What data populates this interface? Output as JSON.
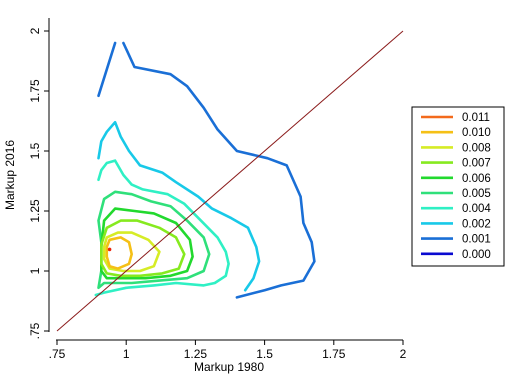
{
  "chart_data": {
    "type": "contour",
    "xlabel": "Markup 1980",
    "ylabel": "Markup 2016",
    "xlim": [
      0.75,
      2
    ],
    "ylim": [
      0.75,
      2
    ],
    "x_ticks": [
      ".75",
      "1",
      "1.25",
      "1.5",
      "1.75",
      "2"
    ],
    "y_ticks": [
      ".75",
      "1",
      "1.25",
      "1.5",
      "1.75",
      "2"
    ],
    "grid": false,
    "legend_position": "right",
    "reference_line": {
      "from": [
        0.75,
        0.75
      ],
      "to": [
        2,
        2
      ],
      "color": "#8b1c1c"
    },
    "peak_point": {
      "x": 0.94,
      "y": 1.09,
      "color": "#e8220a"
    },
    "levels": [
      {
        "label": "0.011",
        "color": "#f36a1c"
      },
      {
        "label": "0.010",
        "color": "#f5c016"
      },
      {
        "label": "0.008",
        "color": "#d6ec26"
      },
      {
        "label": "0.007",
        "color": "#86ea1f"
      },
      {
        "label": "0.006",
        "color": "#22d92e"
      },
      {
        "label": "0.005",
        "color": "#2fe07a"
      },
      {
        "label": "0.004",
        "color": "#2ff0c4"
      },
      {
        "label": "0.002",
        "color": "#18c9e8"
      },
      {
        "label": "0.001",
        "color": "#1a6fd6"
      },
      {
        "label": "0.000",
        "color": "#0a0ad0"
      }
    ],
    "contours": [
      {
        "level": "0.001",
        "points": [
          [
            0.9,
            1.73
          ],
          [
            0.93,
            1.84
          ],
          [
            0.96,
            1.95
          ]
        ],
        "closed": false
      },
      {
        "level": "0.001",
        "points": [
          [
            0.99,
            1.95
          ],
          [
            1.03,
            1.85
          ],
          [
            1.16,
            1.82
          ],
          [
            1.22,
            1.77
          ],
          [
            1.28,
            1.68
          ],
          [
            1.33,
            1.59
          ],
          [
            1.4,
            1.5
          ],
          [
            1.51,
            1.47
          ],
          [
            1.58,
            1.44
          ],
          [
            1.63,
            1.31
          ],
          [
            1.64,
            1.2
          ],
          [
            1.67,
            1.12
          ],
          [
            1.68,
            1.04
          ],
          [
            1.64,
            0.96
          ],
          [
            1.56,
            0.94
          ],
          [
            1.5,
            0.92
          ],
          [
            1.4,
            0.89
          ]
        ],
        "closed": false
      },
      {
        "level": "0.002",
        "points": [
          [
            0.9,
            1.47
          ],
          [
            0.91,
            1.54
          ],
          [
            0.93,
            1.58
          ],
          [
            0.96,
            1.62
          ],
          [
            0.98,
            1.56
          ],
          [
            1.01,
            1.5
          ],
          [
            1.05,
            1.44
          ],
          [
            1.13,
            1.41
          ],
          [
            1.18,
            1.37
          ],
          [
            1.26,
            1.31
          ],
          [
            1.31,
            1.26
          ],
          [
            1.38,
            1.22
          ],
          [
            1.44,
            1.18
          ],
          [
            1.47,
            1.1
          ],
          [
            1.48,
            1.04
          ],
          [
            1.46,
            0.97
          ],
          [
            1.43,
            0.92
          ]
        ],
        "closed": false
      },
      {
        "level": "0.004",
        "points": [
          [
            0.9,
            1.38
          ],
          [
            0.91,
            1.42
          ],
          [
            0.93,
            1.45
          ],
          [
            0.96,
            1.46
          ],
          [
            0.99,
            1.4
          ],
          [
            1.02,
            1.36
          ],
          [
            1.06,
            1.34
          ],
          [
            1.15,
            1.32
          ],
          [
            1.21,
            1.28
          ],
          [
            1.27,
            1.21
          ],
          [
            1.33,
            1.14
          ],
          [
            1.36,
            1.08
          ],
          [
            1.37,
            1.03
          ],
          [
            1.36,
            0.98
          ],
          [
            1.32,
            0.95
          ],
          [
            1.28,
            0.94
          ],
          [
            1.18,
            0.95
          ],
          [
            1.1,
            0.94
          ],
          [
            1.0,
            0.93
          ],
          [
            0.92,
            0.91
          ],
          [
            0.89,
            0.9
          ]
        ],
        "closed": false
      },
      {
        "level": "0.005",
        "points": [
          [
            0.9,
            1.21
          ],
          [
            0.92,
            1.3
          ],
          [
            0.96,
            1.33
          ],
          [
            1.02,
            1.32
          ],
          [
            1.09,
            1.29
          ],
          [
            1.16,
            1.27
          ],
          [
            1.22,
            1.21
          ],
          [
            1.28,
            1.14
          ],
          [
            1.3,
            1.07
          ],
          [
            1.28,
            1.0
          ],
          [
            1.22,
            0.97
          ],
          [
            1.12,
            0.96
          ],
          [
            1.02,
            0.95
          ],
          [
            0.95,
            0.95
          ],
          [
            0.92,
            0.95
          ],
          [
            0.9,
            0.93
          ],
          [
            0.91,
            1.0
          ],
          [
            0.91,
            1.12
          ],
          [
            0.9,
            1.21
          ]
        ],
        "closed": true
      },
      {
        "level": "0.006",
        "points": [
          [
            0.92,
            1.21
          ],
          [
            0.96,
            1.26
          ],
          [
            1.03,
            1.25
          ],
          [
            1.1,
            1.24
          ],
          [
            1.18,
            1.2
          ],
          [
            1.23,
            1.13
          ],
          [
            1.24,
            1.06
          ],
          [
            1.22,
            1.0
          ],
          [
            1.16,
            0.98
          ],
          [
            1.07,
            0.97
          ],
          [
            0.99,
            0.97
          ],
          [
            0.93,
            0.97
          ],
          [
            0.91,
            1.0
          ],
          [
            0.91,
            1.1
          ],
          [
            0.92,
            1.21
          ]
        ],
        "closed": true
      },
      {
        "level": "0.007",
        "points": [
          [
            0.93,
            1.18
          ],
          [
            0.98,
            1.21
          ],
          [
            1.04,
            1.21
          ],
          [
            1.12,
            1.18
          ],
          [
            1.18,
            1.14
          ],
          [
            1.21,
            1.07
          ],
          [
            1.19,
            1.01
          ],
          [
            1.13,
            0.99
          ],
          [
            1.05,
            0.98
          ],
          [
            0.98,
            0.98
          ],
          [
            0.93,
            0.99
          ],
          [
            0.91,
            1.03
          ],
          [
            0.91,
            1.11
          ],
          [
            0.93,
            1.18
          ]
        ],
        "closed": true
      },
      {
        "level": "0.008",
        "points": [
          [
            0.93,
            1.14
          ],
          [
            0.97,
            1.16
          ],
          [
            1.02,
            1.16
          ],
          [
            1.08,
            1.13
          ],
          [
            1.12,
            1.08
          ],
          [
            1.1,
            1.02
          ],
          [
            1.05,
            1.0
          ],
          [
            0.99,
            1.0
          ],
          [
            0.94,
            1.01
          ],
          [
            0.92,
            1.05
          ],
          [
            0.92,
            1.1
          ],
          [
            0.93,
            1.14
          ]
        ],
        "closed": true
      },
      {
        "level": "0.010",
        "points": [
          [
            0.94,
            1.13
          ],
          [
            0.98,
            1.14
          ],
          [
            1.01,
            1.12
          ],
          [
            1.02,
            1.07
          ],
          [
            1.01,
            1.03
          ],
          [
            0.97,
            1.01
          ],
          [
            0.94,
            1.02
          ],
          [
            0.93,
            1.06
          ],
          [
            0.93,
            1.1
          ],
          [
            0.94,
            1.13
          ]
        ],
        "closed": true
      }
    ]
  }
}
